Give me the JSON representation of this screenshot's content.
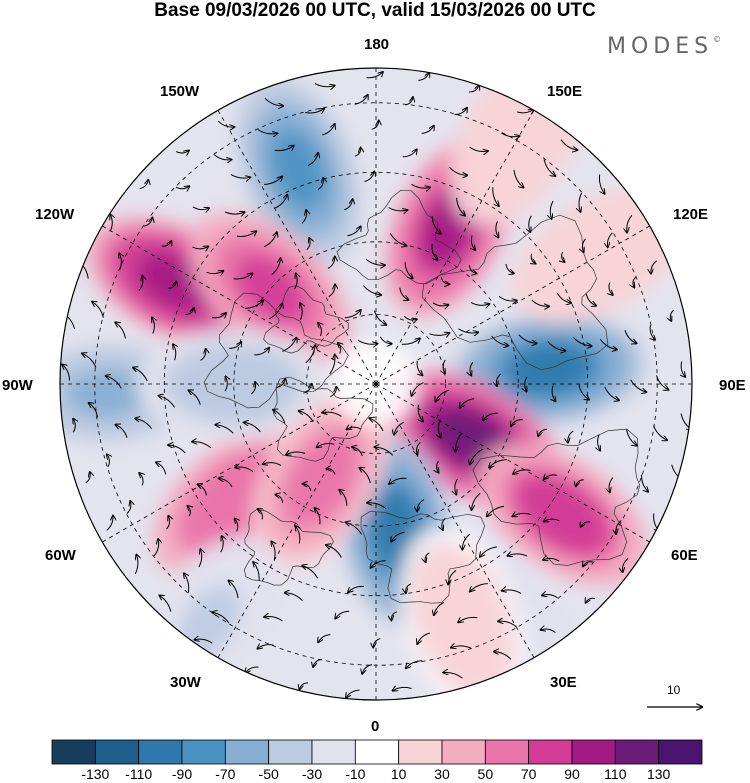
{
  "title": "Base 09/03/2026 00 UTC, valid 15/03/2026 00 UTC",
  "brand": {
    "name": "MODES",
    "mark": "©"
  },
  "longitude_labels": {
    "top": "180",
    "top_right": "150E",
    "right_upper": "120E",
    "right": "90E",
    "right_lower": "60E",
    "bottom_right": "30E",
    "bottom": "0",
    "bottom_left": "30W",
    "left_lower": "60W",
    "left": "90W",
    "left_upper": "120W",
    "top_left": "150W"
  },
  "reference_vector": {
    "label": "10"
  },
  "colorbar": {
    "ticks": [
      "-130",
      "-110",
      "-90",
      "-70",
      "-50",
      "-30",
      "-10",
      "10",
      "30",
      "50",
      "70",
      "90",
      "110",
      "130"
    ],
    "colors": [
      "#173d5c",
      "#1d5f8a",
      "#2f78ab",
      "#4b92c2",
      "#86aed3",
      "#bccbe1",
      "#e2e2ee",
      "#ffffff",
      "#f7d4d8",
      "#f3adc1",
      "#ea75aa",
      "#d33c97",
      "#a31a84",
      "#6b1b78",
      "#4a1470"
    ]
  },
  "anomalies": [
    {
      "lon": 200,
      "r": 0.72,
      "value": -80
    },
    {
      "lon": 155,
      "r": 0.55,
      "value": 95
    },
    {
      "lon": 243,
      "r": 0.71,
      "value": 100
    },
    {
      "lon": 228,
      "r": 0.45,
      "value": 80
    },
    {
      "lon": 95,
      "r": 0.55,
      "value": -95
    },
    {
      "lon": 60,
      "r": 0.35,
      "value": 120
    },
    {
      "lon": 8,
      "r": 0.47,
      "value": -90
    },
    {
      "lon": 55,
      "r": 0.72,
      "value": 85
    },
    {
      "lon": 310,
      "r": 0.58,
      "value": 70
    },
    {
      "lon": 272,
      "r": 0.85,
      "value": -55
    },
    {
      "lon": 270,
      "r": 0.45,
      "value": -45
    },
    {
      "lon": 330,
      "r": 0.35,
      "value": 60
    },
    {
      "lon": 325,
      "r": 0.92,
      "value": -30
    },
    {
      "lon": 120,
      "r": 0.82,
      "value": 25
    },
    {
      "lon": 30,
      "r": 0.95,
      "value": -25
    },
    {
      "lon": 150,
      "r": 0.9,
      "value": 30
    },
    {
      "lon": 20,
      "r": 0.8,
      "value": 20
    }
  ]
}
